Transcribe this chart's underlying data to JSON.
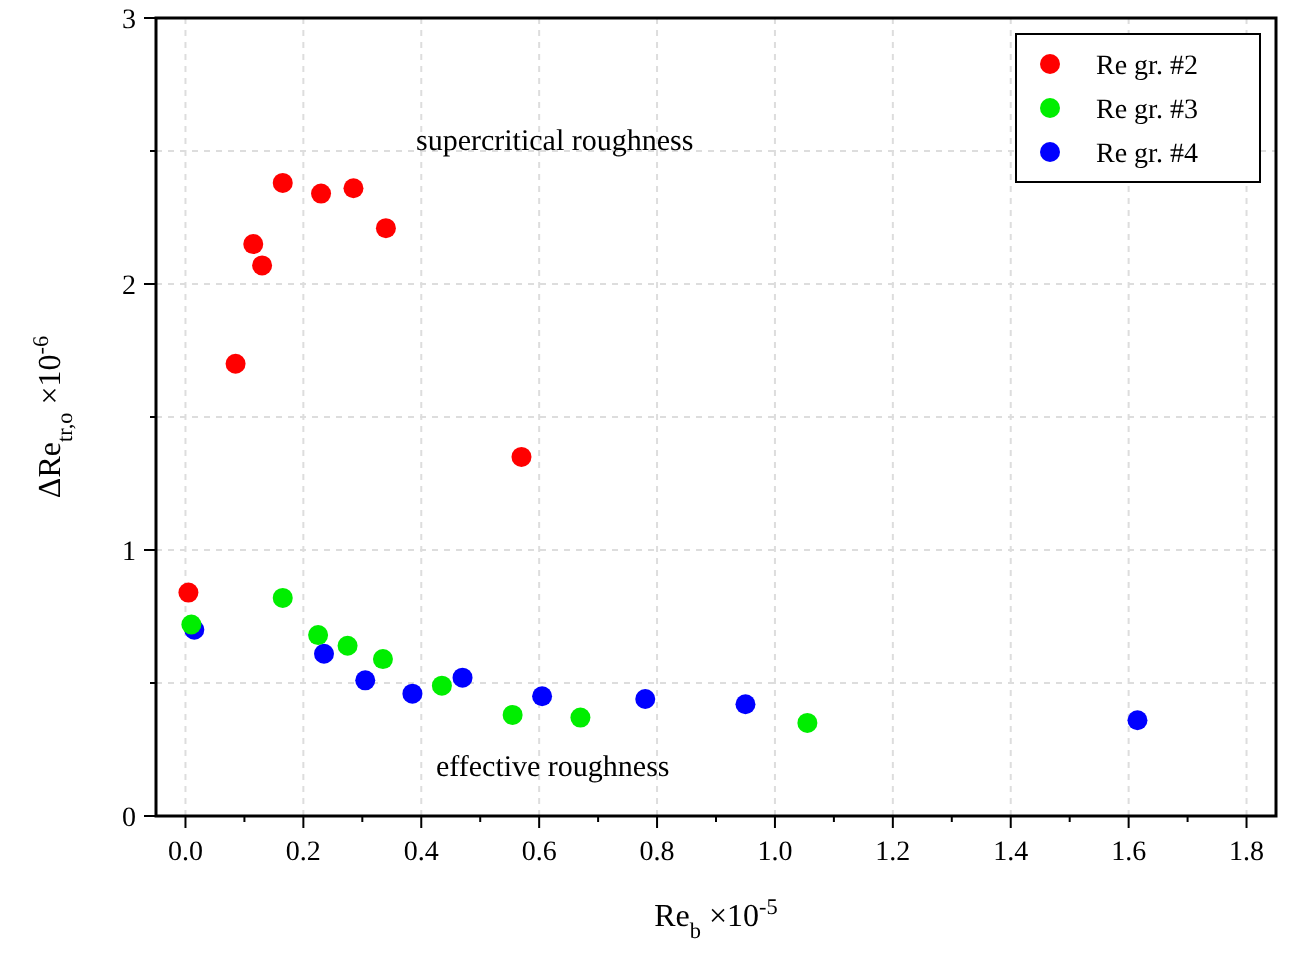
{
  "chart_data": {
    "type": "scatter",
    "xlabel": "Re$_{b}$ ×10$^{-5}$",
    "ylabel": "ΔRe$_{tr,o}$ ×10$^{-6}$",
    "xlim": [
      -0.05,
      1.85
    ],
    "ylim": [
      0,
      3
    ],
    "xticks": [
      {
        "value": 0,
        "label": "0.0"
      },
      {
        "value": 0.2,
        "label": "0.2"
      },
      {
        "value": 0.4,
        "label": "0.4"
      },
      {
        "value": 0.6,
        "label": "0.6"
      },
      {
        "value": 0.8,
        "label": "0.8"
      },
      {
        "value": 1.0,
        "label": "1.0"
      },
      {
        "value": 1.2,
        "label": "1.2"
      },
      {
        "value": 1.4,
        "label": "1.4"
      },
      {
        "value": 1.6,
        "label": "1.6"
      },
      {
        "value": 1.8,
        "label": "1.8"
      }
    ],
    "yticks": [
      0,
      {
        "value": 0.5,
        "label": null
      },
      1,
      {
        "value": 1.5,
        "label": null
      },
      2,
      {
        "value": 2.5,
        "label": null
      },
      3
    ],
    "grid": true,
    "legend": "top right",
    "marker": "circle",
    "annotations": [
      "supercritical roughness",
      "effective roughness"
    ],
    "series": [
      {
        "name": "Re gr. #2",
        "color": "#ff0000",
        "x": [
          0.005,
          0.085,
          0.115,
          0.13,
          0.165,
          0.23,
          0.285,
          0.34,
          0.57
        ],
        "values": [
          0.84,
          1.7,
          2.15,
          2.07,
          2.38,
          2.34,
          2.36,
          2.21,
          1.35
        ]
      },
      {
        "name": "Re gr. #3",
        "color": "#00ee00",
        "x": [
          0.01,
          0.165,
          0.225,
          0.275,
          0.335,
          0.435,
          0.555,
          0.67,
          1.055
        ],
        "values": [
          0.72,
          0.82,
          0.68,
          0.64,
          0.59,
          0.49,
          0.38,
          0.37,
          0.35
        ]
      },
      {
        "name": "Re gr. #4",
        "color": "#0000ff",
        "x": [
          0.015,
          0.235,
          0.305,
          0.385,
          0.47,
          0.605,
          0.78,
          0.95,
          1.615
        ],
        "values": [
          0.7,
          0.61,
          0.51,
          0.46,
          0.52,
          0.45,
          0.44,
          0.42,
          0.36
        ]
      }
    ]
  }
}
